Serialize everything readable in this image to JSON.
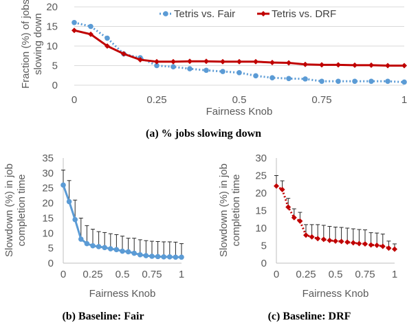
{
  "chart_data": [
    {
      "type": "line",
      "caption": "(a) % jobs slowing down",
      "xlabel": "Fairness Knob",
      "ylabel": "Fraction (%) of jobs slowing down",
      "xlim": [
        0,
        1
      ],
      "ylim": [
        0,
        20
      ],
      "xticks": [
        "0",
        "0.25",
        "0.5",
        "0.75",
        "1"
      ],
      "yticks": [
        "0",
        "5",
        "10",
        "15",
        "20"
      ],
      "grid": true,
      "legend": "top-right",
      "series": [
        {
          "name": "Tetris vs. Fair",
          "color": "#5B9BD5",
          "style": "dotted",
          "x": [
            0,
            0.05,
            0.1,
            0.15,
            0.2,
            0.25,
            0.3,
            0.35,
            0.4,
            0.45,
            0.5,
            0.55,
            0.6,
            0.65,
            0.7,
            0.75,
            0.8,
            0.85,
            0.9,
            0.95,
            1
          ],
          "values": [
            16,
            15,
            12,
            8,
            7,
            5,
            4.7,
            4.2,
            3.8,
            3.5,
            3.2,
            2.4,
            1.9,
            1.7,
            1.6,
            1.0,
            1.0,
            1.0,
            1.0,
            1.0,
            0.8
          ]
        },
        {
          "name": "Tetris vs. DRF",
          "color": "#C00000",
          "style": "solid",
          "x": [
            0,
            0.05,
            0.1,
            0.15,
            0.2,
            0.25,
            0.3,
            0.35,
            0.4,
            0.45,
            0.5,
            0.55,
            0.6,
            0.65,
            0.7,
            0.75,
            0.8,
            0.85,
            0.9,
            0.95,
            1
          ],
          "values": [
            14,
            13,
            10,
            8,
            6.5,
            6,
            6,
            6.1,
            6.1,
            6,
            6,
            6,
            5.8,
            5.7,
            5.3,
            5.2,
            5.2,
            5.1,
            5.1,
            5,
            5
          ]
        }
      ]
    },
    {
      "type": "line",
      "caption": "(b) Baseline: Fair",
      "xlabel": "Fairness Knob",
      "ylabel": "Slowdown (%) in job completion time",
      "xlim": [
        0,
        1
      ],
      "ylim": [
        0,
        35
      ],
      "xticks": [
        "0",
        "0.25",
        "0.5",
        "0.75",
        "1"
      ],
      "yticks": [
        "0",
        "5",
        "10",
        "15",
        "20",
        "25",
        "30",
        "35"
      ],
      "grid": false,
      "series": [
        {
          "color": "#5B9BD5",
          "style": "solid",
          "x": [
            0,
            0.05,
            0.1,
            0.15,
            0.2,
            0.25,
            0.3,
            0.35,
            0.4,
            0.45,
            0.5,
            0.55,
            0.6,
            0.65,
            0.7,
            0.75,
            0.8,
            0.85,
            0.9,
            0.95,
            1
          ],
          "values": [
            26,
            20.5,
            14.5,
            8,
            6.5,
            5.8,
            5.5,
            5.2,
            4.8,
            4.5,
            4,
            3.8,
            3.3,
            2.8,
            2.5,
            2.3,
            2.2,
            2.1,
            2.1,
            2,
            2
          ],
          "error": [
            5,
            7,
            6.5,
            7,
            6,
            5.5,
            5,
            5,
            5,
            5,
            5,
            4.5,
            5,
            5,
            5,
            5,
            5,
            5,
            5,
            5,
            4.5
          ]
        }
      ]
    },
    {
      "type": "line",
      "caption": "(c) Baseline: DRF",
      "xlabel": "Fairness Knob",
      "ylabel": "Slowdown (%) in job completion time",
      "xlim": [
        0,
        1
      ],
      "ylim": [
        0,
        30
      ],
      "xticks": [
        "0",
        "0.25",
        "0.5",
        "0.75",
        "1"
      ],
      "yticks": [
        "0",
        "5",
        "10",
        "15",
        "20",
        "25",
        "30"
      ],
      "grid": false,
      "series": [
        {
          "color": "#C00000",
          "style": "dotted",
          "x": [
            0,
            0.05,
            0.1,
            0.15,
            0.2,
            0.25,
            0.3,
            0.35,
            0.4,
            0.45,
            0.5,
            0.55,
            0.6,
            0.65,
            0.7,
            0.75,
            0.8,
            0.85,
            0.9,
            0.95,
            1
          ],
          "values": [
            22,
            21,
            16,
            13,
            12,
            8,
            7.5,
            7,
            6.8,
            6.5,
            6.3,
            6.2,
            6,
            5.8,
            5.6,
            5.5,
            5.2,
            5.1,
            4.8,
            4.3,
            4
          ],
          "error": [
            3,
            2.5,
            2.5,
            2.5,
            2.5,
            3,
            3.5,
            4,
            4,
            4,
            4,
            4,
            4,
            4,
            4,
            4,
            3.5,
            3.5,
            3.5,
            2,
            1.5
          ]
        }
      ]
    }
  ]
}
